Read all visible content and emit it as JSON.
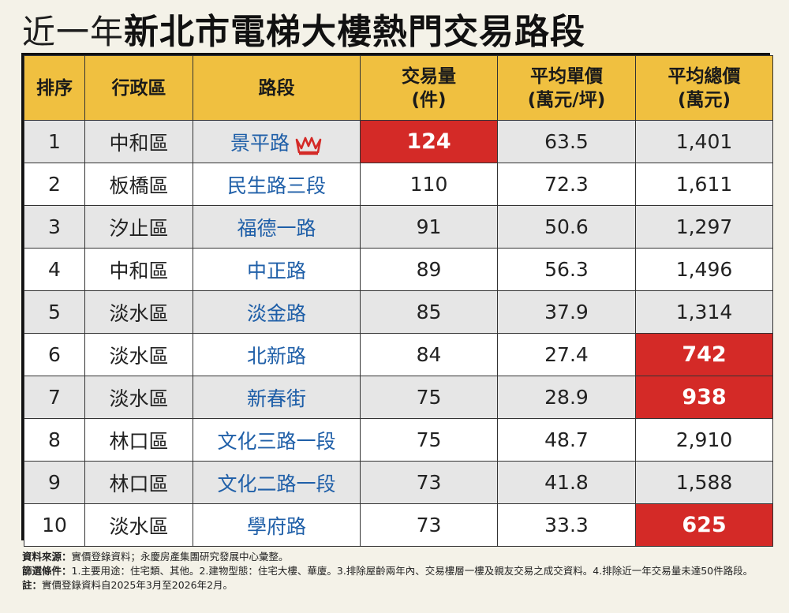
{
  "title": {
    "light": "近一年",
    "bold": "新北市電梯大樓熱門交易路段"
  },
  "table": {
    "headers": [
      {
        "l1": "排序",
        "l2": ""
      },
      {
        "l1": "行政區",
        "l2": ""
      },
      {
        "l1": "路段",
        "l2": ""
      },
      {
        "l1": "交易量",
        "l2": "(件)"
      },
      {
        "l1": "平均單價",
        "l2": "(萬元/坪)"
      },
      {
        "l1": "平均總價",
        "l2": "(萬元)"
      }
    ],
    "rows": [
      {
        "rank": "1",
        "district": "中和區",
        "road": "景平路",
        "volume": "124",
        "unit_price": "63.5",
        "total_price": "1,401"
      },
      {
        "rank": "2",
        "district": "板橋區",
        "road": "民生路三段",
        "volume": "110",
        "unit_price": "72.3",
        "total_price": "1,611"
      },
      {
        "rank": "3",
        "district": "汐止區",
        "road": "福德一路",
        "volume": "91",
        "unit_price": "50.6",
        "total_price": "1,297"
      },
      {
        "rank": "4",
        "district": "中和區",
        "road": "中正路",
        "volume": "89",
        "unit_price": "56.3",
        "total_price": "1,496"
      },
      {
        "rank": "5",
        "district": "淡水區",
        "road": "淡金路",
        "volume": "85",
        "unit_price": "37.9",
        "total_price": "1,314"
      },
      {
        "rank": "6",
        "district": "淡水區",
        "road": "北新路",
        "volume": "84",
        "unit_price": "27.4",
        "total_price": "742"
      },
      {
        "rank": "7",
        "district": "淡水區",
        "road": "新春街",
        "volume": "75",
        "unit_price": "28.9",
        "total_price": "938"
      },
      {
        "rank": "8",
        "district": "林口區",
        "road": "文化三路一段",
        "volume": "75",
        "unit_price": "48.7",
        "total_price": "2,910"
      },
      {
        "rank": "9",
        "district": "林口區",
        "road": "文化二路一段",
        "volume": "73",
        "unit_price": "41.8",
        "total_price": "1,588"
      },
      {
        "rank": "10",
        "district": "淡水區",
        "road": "學府路",
        "volume": "73",
        "unit_price": "33.3",
        "total_price": "625"
      }
    ]
  },
  "highlight_color": "#d42a27",
  "header_color": "#f0c040",
  "road_text_color": "#1f5fa8",
  "top_rank_icon": "crown-icon",
  "notes": {
    "source_label": "資料來源：",
    "source_text": "實價登錄資料；永慶房產集團研究發展中心彙整。",
    "filter_label": "篩選條件：",
    "filter_text": "1.主要用途：住宅類、其他。2.建物型態：住宅大樓、華廈。3.排除屋齡兩年內、交易樓層一樓及親友交易之成交資料。4.排除近一年交易量未達50件路段。",
    "note_label": "註：",
    "note_text": "實價登錄資料自2025年3月至2026年2月。"
  }
}
